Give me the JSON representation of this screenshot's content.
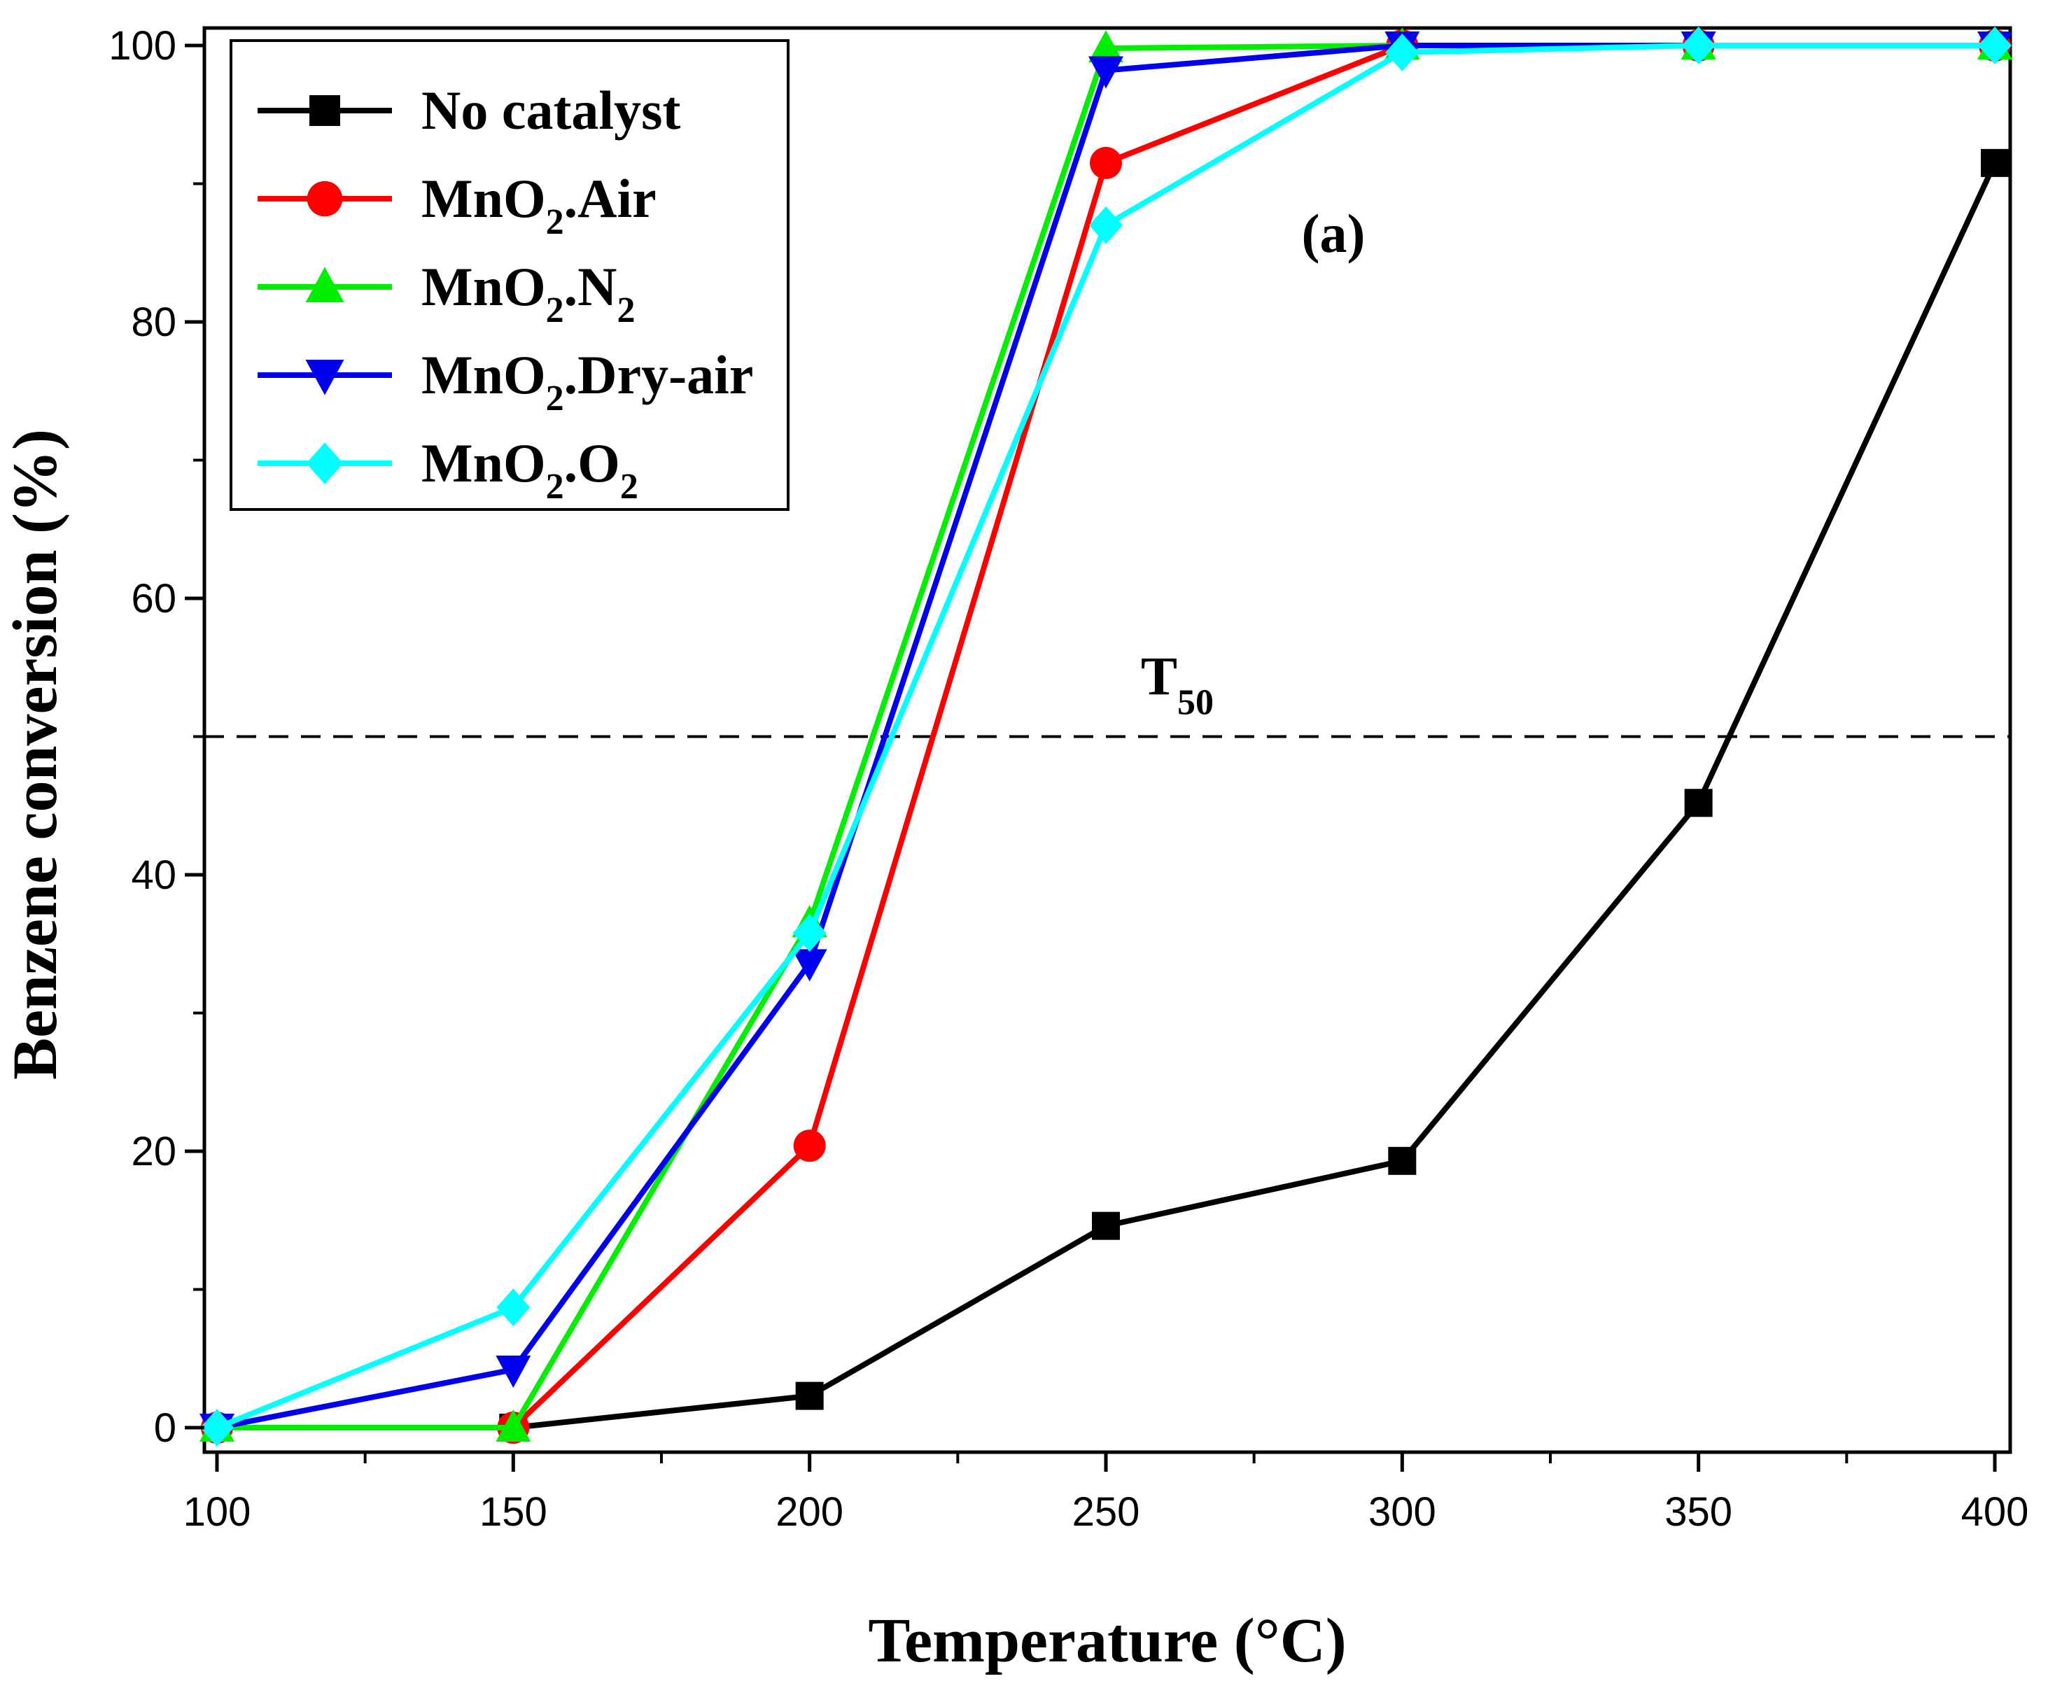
{
  "chart_data": {
    "type": "line",
    "xlabel": "Temperature (°C)",
    "ylabel": "Benzene conversion (%)",
    "xlim": [
      100,
      400
    ],
    "ylim": [
      0,
      100
    ],
    "x_ticks": [
      100,
      150,
      200,
      250,
      300,
      350,
      400
    ],
    "y_ticks": [
      0,
      20,
      40,
      60,
      80,
      100
    ],
    "x": [
      100,
      150,
      200,
      250,
      300,
      350,
      400
    ],
    "legend_position": "top-left",
    "panel_label": "(a)",
    "reference_line": {
      "label": "T",
      "label_subscript": "50",
      "y": 50,
      "style": "dashed"
    },
    "series": [
      {
        "name": "No catalyst",
        "formula": {
          "base": "No catalyst"
        },
        "color": "#000000",
        "marker": "square",
        "values": [
          0,
          0,
          2.3,
          14.6,
          19.3,
          45.2,
          91.5
        ]
      },
      {
        "name": "MnO2.Air",
        "formula": {
          "base": "MnO",
          "sub1": "2",
          "tail": ".Air"
        },
        "color": "#ff0000",
        "marker": "circle",
        "values": [
          0,
          0,
          20.4,
          91.5,
          100,
          100,
          100
        ]
      },
      {
        "name": "MnO2.N2",
        "formula": {
          "base": "MnO",
          "sub1": "2",
          "tail": ".N",
          "sub2": "2"
        },
        "color": "#00ee00",
        "marker": "triangle-up",
        "values": [
          0,
          0,
          36.5,
          99.8,
          100,
          100,
          100
        ]
      },
      {
        "name": "MnO2.Dry-air",
        "formula": {
          "base": "MnO",
          "sub1": "2",
          "tail": ".Dry-air"
        },
        "color": "#0000ee",
        "marker": "triangle-down",
        "values": [
          0,
          4.2,
          33.6,
          98.2,
          100,
          100,
          100
        ]
      },
      {
        "name": "MnO2.O2",
        "formula": {
          "base": "MnO",
          "sub1": "2",
          "tail": ".O",
          "sub2": "2"
        },
        "color": "#00ffff",
        "marker": "diamond",
        "values": [
          0,
          8.7,
          35.8,
          87.0,
          99.5,
          100,
          100
        ]
      }
    ]
  }
}
